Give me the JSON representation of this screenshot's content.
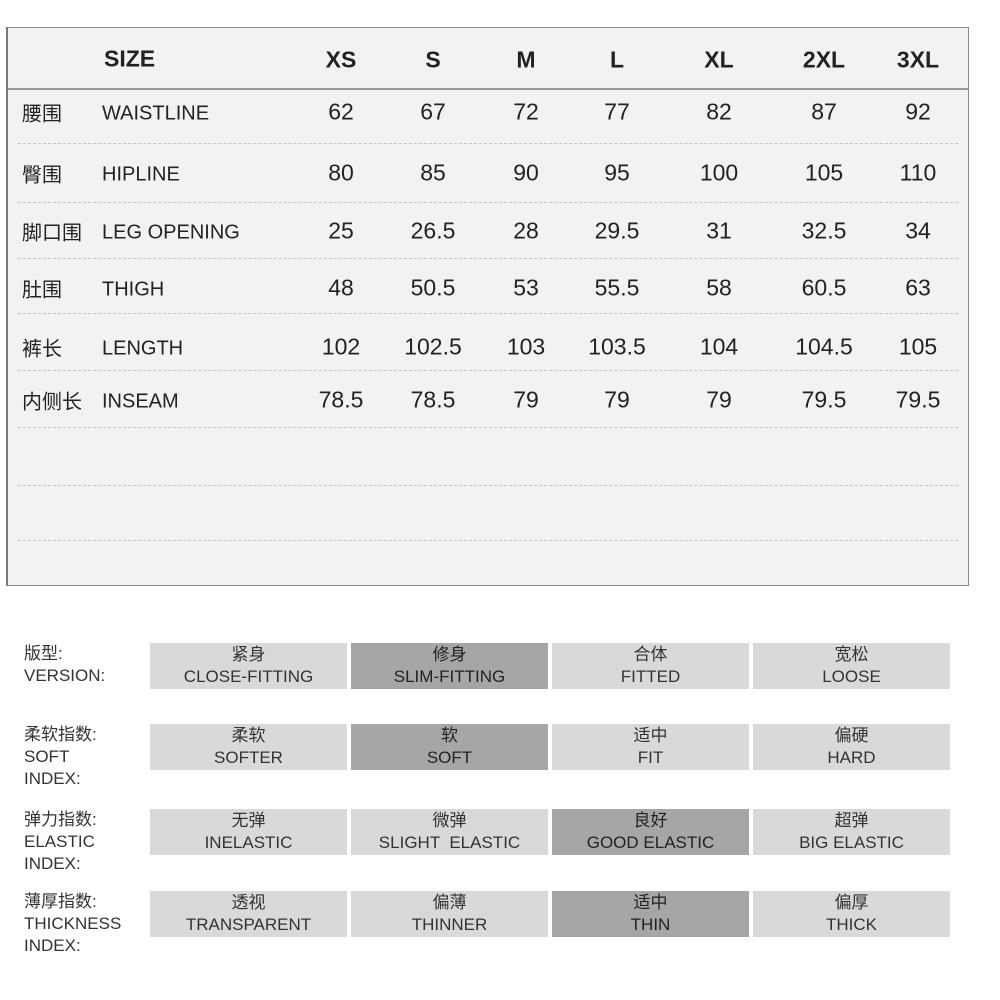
{
  "size_table": {
    "header_label": "SIZE",
    "sizes": [
      "XS",
      "S",
      "M",
      "L",
      "XL",
      "2XL",
      "3XL"
    ],
    "rows": [
      {
        "cn": "腰围",
        "en": "WAISTLINE",
        "values": [
          "62",
          "67",
          "72",
          "77",
          "82",
          "87",
          "92"
        ]
      },
      {
        "cn": "臀围",
        "en": "HIPLINE",
        "values": [
          "80",
          "85",
          "90",
          "95",
          "100",
          "105",
          "110"
        ]
      },
      {
        "cn": "脚口围",
        "en": "LEG OPENING",
        "values": [
          "25",
          "26.5",
          "28",
          "29.5",
          "31",
          "32.5",
          "34"
        ]
      },
      {
        "cn": "肚围",
        "en": "THIGH",
        "values": [
          "48",
          "50.5",
          "53",
          "55.5",
          "58",
          "60.5",
          "63"
        ]
      },
      {
        "cn": "裤长",
        "en": "LENGTH",
        "values": [
          "102",
          "102.5",
          "103",
          "103.5",
          "104",
          "104.5",
          "105"
        ]
      },
      {
        "cn": "内侧长",
        "en": "INSEAM",
        "values": [
          "78.5",
          "78.5",
          "79",
          "79",
          "79",
          "79.5",
          "79.5"
        ]
      }
    ]
  },
  "indices": [
    {
      "label_lines": [
        "版型:",
        "VERSION:"
      ],
      "selected": 1,
      "options": [
        {
          "cn": "紧身",
          "en": "CLOSE-FITTING"
        },
        {
          "cn": "修身",
          "en": "SLIM-FITTING"
        },
        {
          "cn": "合体",
          "en": "FITTED"
        },
        {
          "cn": "宽松",
          "en": "LOOSE"
        }
      ]
    },
    {
      "label_lines": [
        "柔软指数:",
        "SOFT",
        "INDEX:"
      ],
      "selected": 1,
      "options": [
        {
          "cn": "柔软",
          "en": "SOFTER"
        },
        {
          "cn": "软",
          "en": "SOFT"
        },
        {
          "cn": "适中",
          "en": "FIT"
        },
        {
          "cn": "偏硬",
          "en": "HARD"
        }
      ]
    },
    {
      "label_lines": [
        "弹力指数:",
        "ELASTIC",
        "INDEX:"
      ],
      "selected": 2,
      "options": [
        {
          "cn": "无弹",
          "en": "INELASTIC"
        },
        {
          "cn": "微弹",
          "en": "SLIGHT  ELASTIC"
        },
        {
          "cn": "良好",
          "en": "GOOD ELASTIC"
        },
        {
          "cn": "超弹",
          "en": "BIG ELASTIC"
        }
      ]
    },
    {
      "label_lines": [
        "薄厚指数:",
        "THICKNESS",
        "INDEX:"
      ],
      "selected": 2,
      "options": [
        {
          "cn": "透视",
          "en": "TRANSPARENT"
        },
        {
          "cn": "偏薄",
          "en": "THINNER"
        },
        {
          "cn": "适中",
          "en": "THIN"
        },
        {
          "cn": "偏厚",
          "en": "THICK"
        }
      ]
    }
  ],
  "colors": {
    "table_bg": "#f2f2f2",
    "option_bg": "#d9d9d9",
    "selected_bg": "#a6a6a6"
  }
}
